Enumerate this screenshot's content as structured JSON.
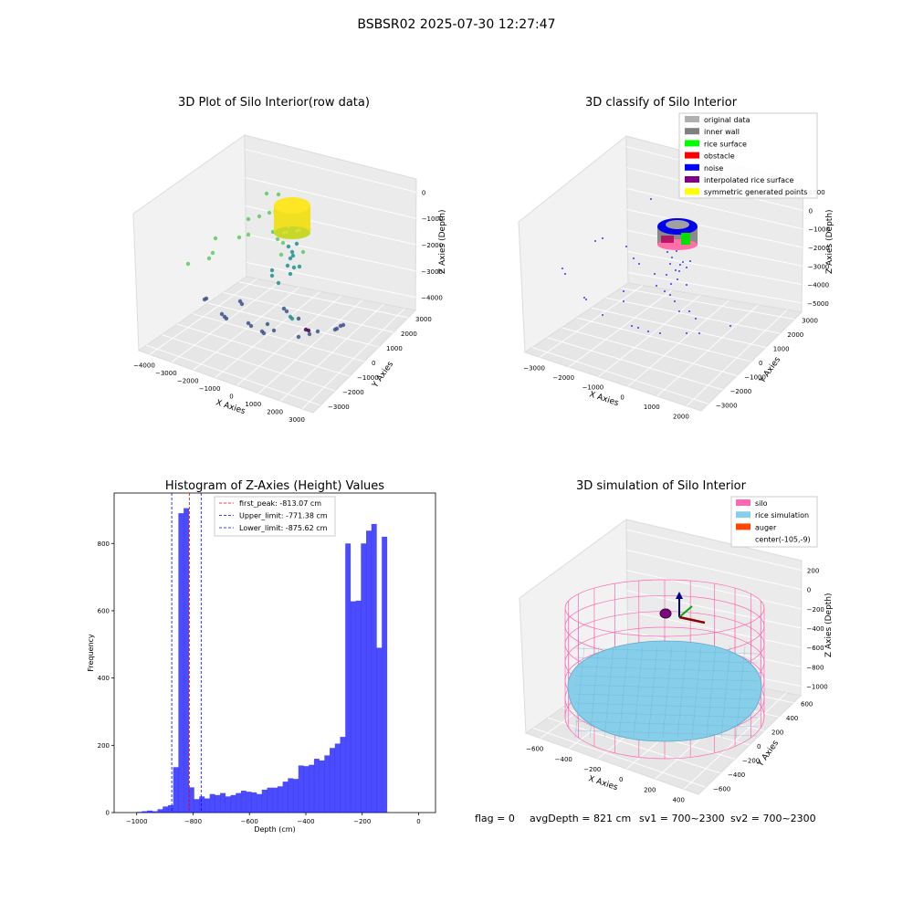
{
  "suptitle": "BSBSR02 2025-07-30 12:27:47",
  "footer": {
    "flag": "flag = 0",
    "avg_depth": "avgDepth = 821 cm",
    "sv1": "sv1 = 700~2300",
    "sv2": "sv2 = 700~2300"
  },
  "chart_data": [
    {
      "type": "scatter",
      "projection": "3d",
      "title": "3D Plot of Silo Interior(row data)",
      "xlabel": "X Axies",
      "ylabel": "Y Axies",
      "zlabel": "Z Axies (Depth)",
      "x_ticks": [
        "−4000",
        "−3000",
        "−2000",
        "−1000",
        "0",
        "1000",
        "2000",
        "3000"
      ],
      "y_ticks": [
        "−3000",
        "−2000",
        "−1000",
        "0",
        "1000",
        "2000",
        "3000"
      ],
      "z_ticks": [
        "−4000",
        "−3000",
        "−2000",
        "−1000",
        "0"
      ],
      "colormap": "viridis"
    },
    {
      "type": "scatter",
      "projection": "3d",
      "title": "3D classify of Silo Interior",
      "xlabel": "X Axies",
      "ylabel": "Y Axies",
      "zlabel": "Z Axies (Depth)",
      "x_ticks": [
        "−3000",
        "−2000",
        "−1000",
        "0",
        "1000",
        "2000"
      ],
      "y_ticks": [
        "−3000",
        "−2000",
        "−1000",
        "0",
        "1000",
        "2000",
        "3000"
      ],
      "z_ticks": [
        "−5000",
        "−4000",
        "−3000",
        "−2000",
        "−1000",
        "0",
        "1000"
      ],
      "legend_position": "top-right",
      "legend": [
        {
          "label": "original data",
          "color": "#b0b0b0"
        },
        {
          "label": "inner wall",
          "color": "#808080"
        },
        {
          "label": "rice surface",
          "color": "#00ff00"
        },
        {
          "label": "obstacle",
          "color": "#ff0000"
        },
        {
          "label": "noise",
          "color": "#0000ff"
        },
        {
          "label": "interpolated rice surface",
          "color": "#800080"
        },
        {
          "label": "symmetric generated points",
          "color": "#ffff00"
        }
      ]
    },
    {
      "type": "bar",
      "title": "Histogram of Z-Axies (Height) Values",
      "xlabel": "Depth (cm)",
      "ylabel": "Frequency",
      "xlim": [
        -1080,
        60
      ],
      "ylim": [
        0,
        950
      ],
      "x_ticks": [
        -1000,
        -800,
        -600,
        -400,
        -200,
        0
      ],
      "y_ticks": [
        0,
        200,
        400,
        600,
        800
      ],
      "bin_width": 18.5,
      "bin_start": -1000,
      "values": [
        2,
        4,
        6,
        4,
        10,
        18,
        22,
        135,
        890,
        905,
        75,
        40,
        48,
        42,
        55,
        52,
        58,
        48,
        52,
        58,
        65,
        62,
        60,
        55,
        68,
        74,
        74,
        78,
        92,
        102,
        100,
        140,
        138,
        142,
        160,
        155,
        170,
        192,
        205,
        225,
        800,
        628,
        630,
        800,
        838,
        858,
        490,
        820
      ],
      "bar_color": "#0000ff",
      "lines": [
        {
          "label": "first_peak: -813.07 cm",
          "x": -813.07,
          "color": "#ff0000"
        },
        {
          "label": "Upper_limit: -771.38 cm",
          "x": -771.38,
          "color": "#0000ff"
        },
        {
          "label": "Lower_limit: -875.62 cm",
          "x": -875.62,
          "color": "#0000ff"
        }
      ],
      "legend_position": "top-center"
    },
    {
      "type": "surface",
      "projection": "3d",
      "title": "3D simulation of Silo Interior",
      "xlabel": "X Axies",
      "ylabel": "Y Axies",
      "zlabel": "Z Axies (Depth)",
      "x_ticks": [
        "−600",
        "−400",
        "−200",
        "0",
        "200",
        "400"
      ],
      "y_ticks": [
        "−600",
        "−400",
        "−200",
        "0",
        "200",
        "400",
        "600"
      ],
      "z_ticks": [
        "−1000",
        "−800",
        "−600",
        "−400",
        "−200",
        "0",
        "200"
      ],
      "legend_position": "top-right",
      "legend": [
        {
          "label": "silo",
          "color": "#ff69b4"
        },
        {
          "label": "rice simulation",
          "color": "#87ceeb"
        },
        {
          "label": "auger",
          "color": "#ff4500"
        },
        {
          "label": "center(-105,-9)",
          "color": "#ffffff"
        }
      ]
    }
  ]
}
